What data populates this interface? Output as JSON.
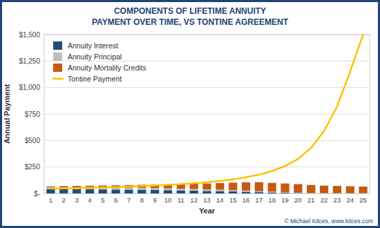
{
  "chart_data": {
    "type": "bar",
    "title": "COMPONENTS OF LIFETIME ANNUITY",
    "subtitle": "PAYMENT OVER TIME, VS TONTINE AGREEMENT",
    "x_label": "Year",
    "y_label": "Annual Payment",
    "categories": [
      "1",
      "2",
      "3",
      "4",
      "5",
      "6",
      "7",
      "8",
      "9",
      "10",
      "11",
      "12",
      "13",
      "14",
      "15",
      "16",
      "17",
      "18",
      "19",
      "20",
      "21",
      "22",
      "23",
      "24",
      "25"
    ],
    "stacked": true,
    "series": [
      {
        "name": "Annuity Interest",
        "type": "bar",
        "color": "#1f4e79",
        "values": [
          42,
          41,
          40,
          39,
          38,
          37,
          36,
          35,
          33,
          31,
          29,
          27,
          24,
          22,
          19,
          16,
          12,
          9,
          6,
          4,
          2,
          2,
          1,
          1,
          1
        ]
      },
      {
        "name": "Annuity Principal",
        "type": "bar",
        "color": "#bfbfbf",
        "values": [
          18,
          18,
          18,
          18,
          18,
          18,
          18,
          18,
          17,
          17,
          16,
          16,
          15,
          14,
          13,
          11,
          9,
          8,
          6,
          4,
          3,
          2,
          2,
          2,
          2
        ]
      },
      {
        "name": "Annuity Mortality Credits",
        "type": "bar",
        "color": "#c55a11",
        "values": [
          8,
          11,
          13,
          16,
          19,
          22,
          25,
          29,
          34,
          38,
          43,
          49,
          55,
          62,
          70,
          78,
          85,
          83,
          82,
          80,
          75,
          70,
          68,
          65,
          62
        ]
      },
      {
        "name": "Tontine Payment",
        "type": "line",
        "color": "#ffc000",
        "values": [
          46,
          48,
          51,
          54,
          57,
          61,
          65,
          70,
          75,
          81,
          88,
          96,
          106,
          118,
          133,
          153,
          178,
          212,
          258,
          325,
          430,
          590,
          820,
          1150,
          1500
        ]
      }
    ],
    "ylim": [
      0,
      1500
    ],
    "yticks": [
      {
        "value": 0,
        "label": "$-"
      },
      {
        "value": 250,
        "label": "$250"
      },
      {
        "value": 500,
        "label": "$500"
      },
      {
        "value": 750,
        "label": "$750"
      },
      {
        "value": 1000,
        "label": "$1,000"
      },
      {
        "value": 1250,
        "label": "$1,250"
      },
      {
        "value": 1500,
        "label": "$1,500"
      }
    ],
    "grid": true,
    "legend": "top-left",
    "annotations": [
      "© Michael Kitces, www.kitces.com"
    ]
  }
}
